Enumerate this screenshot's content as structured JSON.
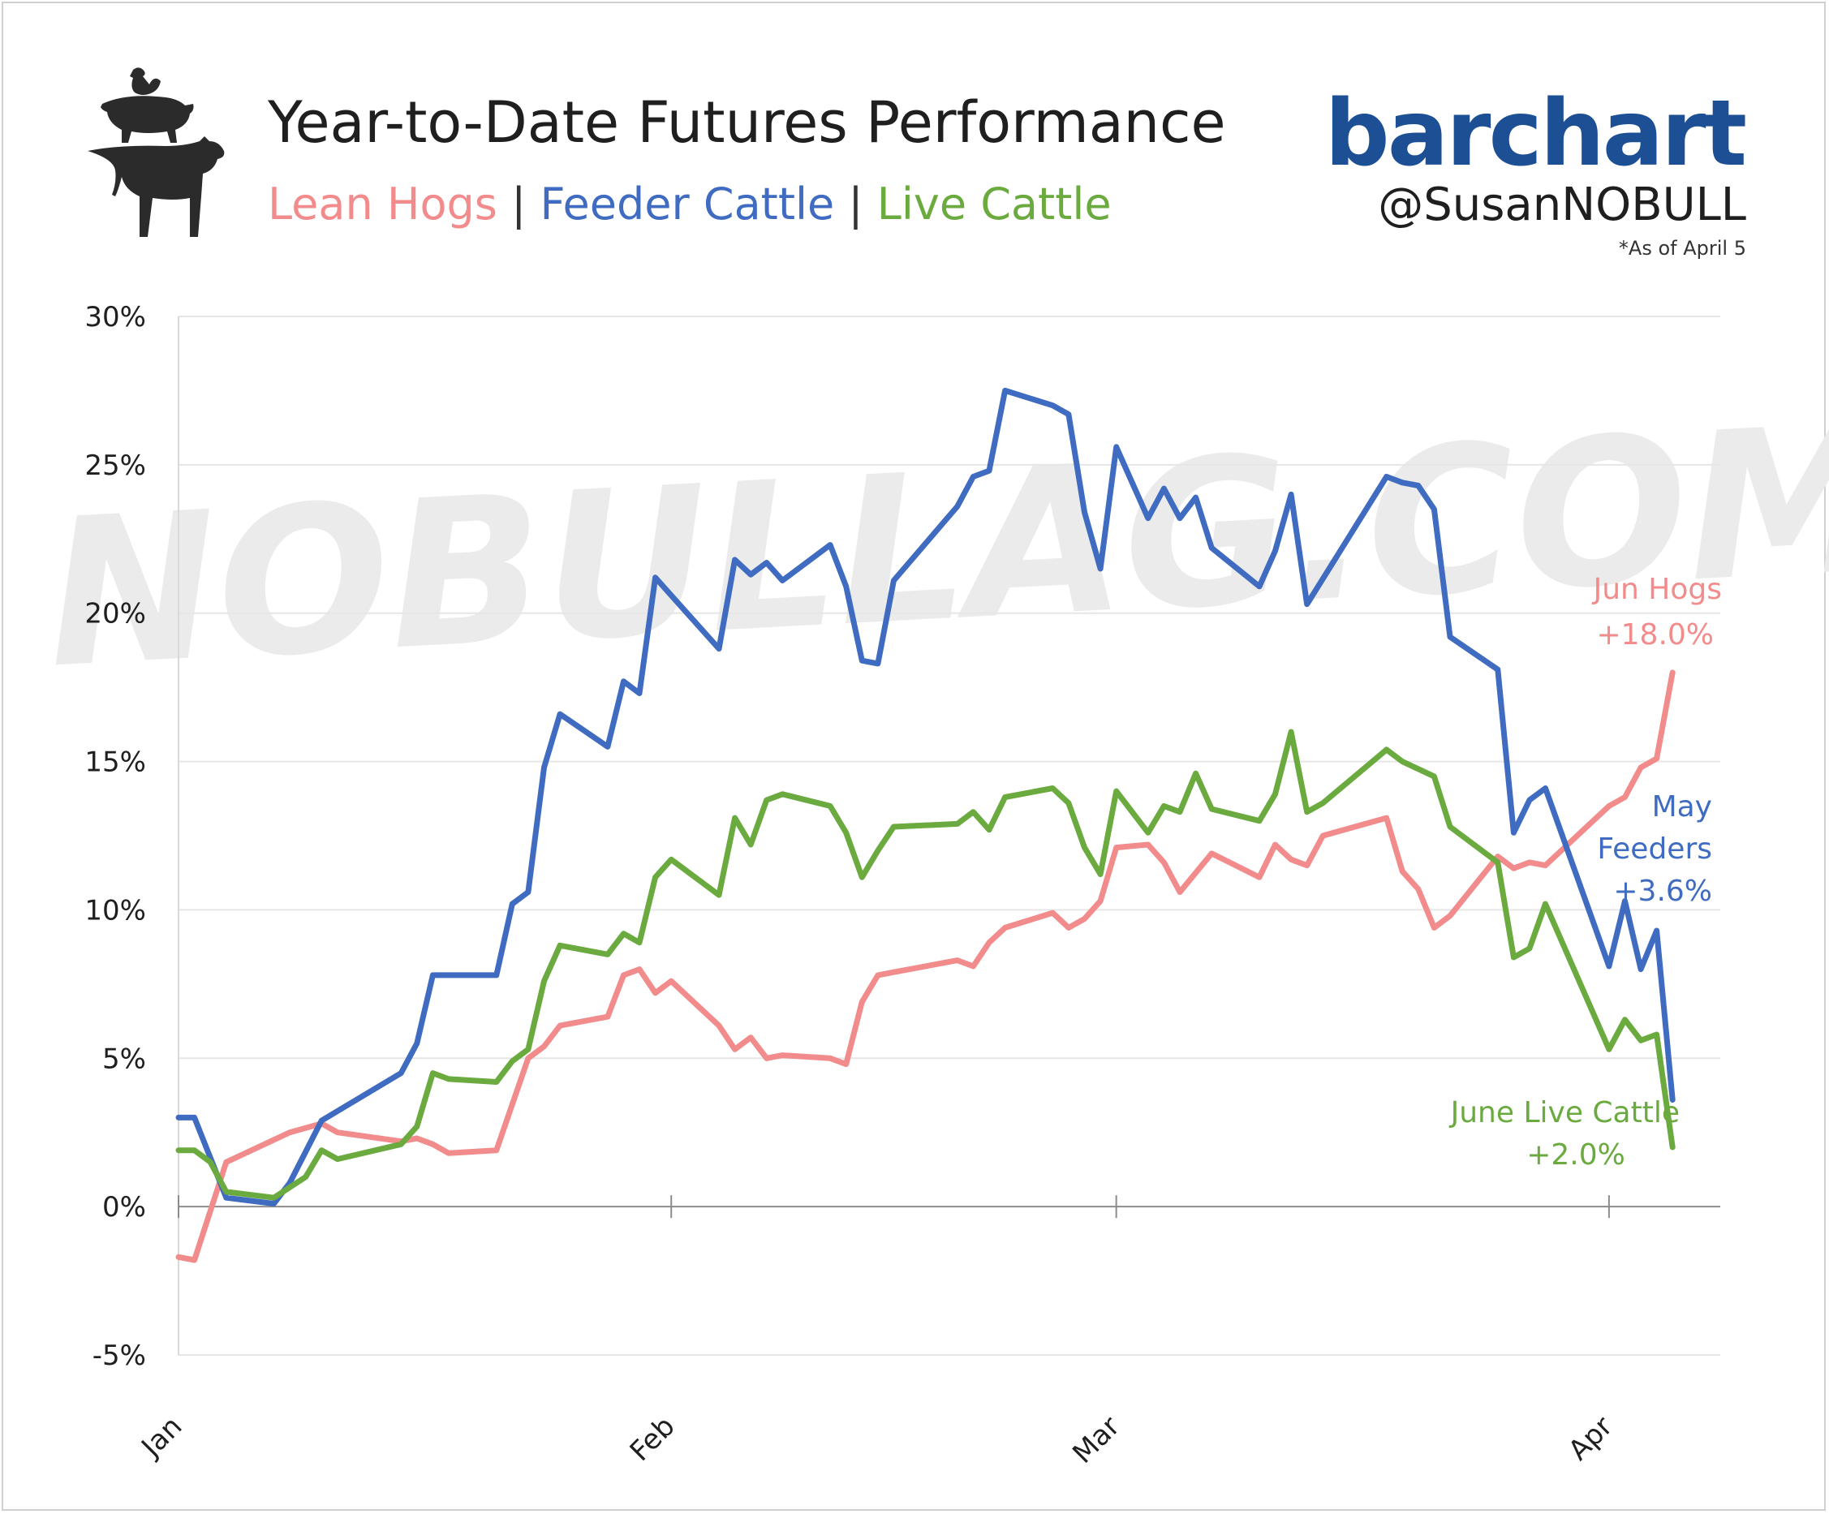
{
  "header": {
    "title": "Year-to-Date Futures Performance",
    "subtitle": {
      "lean_hogs": "Lean Hogs",
      "feeder_cattle": "Feeder Cattle",
      "live_cattle": "Live Cattle",
      "separator": "|"
    },
    "brand": "barchart",
    "handle": "@SusanNOBULL",
    "as_of": "*As of April 5",
    "watermark": "NOBULLAG.COM"
  },
  "colors": {
    "hogs": "#f28b8b",
    "feeders": "#3f6cc0",
    "live_cattle": "#6aaa3f",
    "grid": "#e6e6e6",
    "brand": "#1c4f94"
  },
  "chart_data": {
    "type": "line",
    "x_type": "date",
    "x_range": [
      "2022-01-01",
      "2022-04-08"
    ],
    "x_ticks": [
      "2022-01-01",
      "2022-02-01",
      "2022-03-01",
      "2022-04-01"
    ],
    "x_tick_labels": [
      "Jan",
      "Feb",
      "Mar",
      "Apr"
    ],
    "ylim": [
      -5,
      30
    ],
    "y_ticks": [
      -5,
      0,
      5,
      10,
      15,
      20,
      25,
      30
    ],
    "y_tick_labels": [
      "-5%",
      "0%",
      "5%",
      "10%",
      "15%",
      "20%",
      "25%",
      "30%"
    ],
    "grid": true,
    "series": [
      {
        "name": "Jun Hogs",
        "color": "#f28b8b",
        "end_label": [
          "Jun Hogs",
          "+18.0%"
        ],
        "points": [
          [
            "2022-01-01",
            -1.7
          ],
          [
            "2022-01-02",
            -1.8
          ],
          [
            "2022-01-04",
            1.5
          ],
          [
            "2022-01-08",
            2.5
          ],
          [
            "2022-01-10",
            2.8
          ],
          [
            "2022-01-11",
            2.5
          ],
          [
            "2022-01-15",
            2.2
          ],
          [
            "2022-01-16",
            2.3
          ],
          [
            "2022-01-17",
            2.1
          ],
          [
            "2022-01-18",
            1.8
          ],
          [
            "2022-01-21",
            1.9
          ],
          [
            "2022-01-23",
            5.0
          ],
          [
            "2022-01-24",
            5.4
          ],
          [
            "2022-01-25",
            6.1
          ],
          [
            "2022-01-28",
            6.4
          ],
          [
            "2022-01-29",
            7.8
          ],
          [
            "2022-01-30",
            8.0
          ],
          [
            "2022-01-31",
            7.2
          ],
          [
            "2022-02-01",
            7.6
          ],
          [
            "2022-02-04",
            6.1
          ],
          [
            "2022-02-05",
            5.3
          ],
          [
            "2022-02-06",
            5.7
          ],
          [
            "2022-02-07",
            5.0
          ],
          [
            "2022-02-08",
            5.1
          ],
          [
            "2022-02-11",
            5.0
          ],
          [
            "2022-02-12",
            4.8
          ],
          [
            "2022-02-13",
            6.9
          ],
          [
            "2022-02-14",
            7.8
          ],
          [
            "2022-02-15",
            7.9
          ],
          [
            "2022-02-19",
            8.3
          ],
          [
            "2022-02-20",
            8.1
          ],
          [
            "2022-02-21",
            8.9
          ],
          [
            "2022-02-22",
            9.4
          ],
          [
            "2022-02-25",
            9.9
          ],
          [
            "2022-02-26",
            9.4
          ],
          [
            "2022-02-27",
            9.7
          ],
          [
            "2022-02-28",
            10.3
          ],
          [
            "2022-03-01",
            12.1
          ],
          [
            "2022-03-03",
            12.2
          ],
          [
            "2022-03-04",
            11.6
          ],
          [
            "2022-03-05",
            10.6
          ],
          [
            "2022-03-07",
            11.9
          ],
          [
            "2022-03-10",
            11.1
          ],
          [
            "2022-03-11",
            12.2
          ],
          [
            "2022-03-12",
            11.7
          ],
          [
            "2022-03-13",
            11.5
          ],
          [
            "2022-03-14",
            12.5
          ],
          [
            "2022-03-18",
            13.1
          ],
          [
            "2022-03-19",
            11.3
          ],
          [
            "2022-03-20",
            10.7
          ],
          [
            "2022-03-21",
            9.4
          ],
          [
            "2022-03-22",
            9.8
          ],
          [
            "2022-03-25",
            11.8
          ],
          [
            "2022-03-26",
            11.4
          ],
          [
            "2022-03-27",
            11.6
          ],
          [
            "2022-03-28",
            11.5
          ],
          [
            "2022-04-01",
            13.5
          ],
          [
            "2022-04-02",
            13.8
          ],
          [
            "2022-04-03",
            14.8
          ],
          [
            "2022-04-04",
            15.1
          ],
          [
            "2022-04-05",
            18.0
          ]
        ]
      },
      {
        "name": "May Feeders",
        "color": "#3f6cc0",
        "end_label": [
          "May",
          "Feeders",
          "+3.6%"
        ],
        "points": [
          [
            "2022-01-01",
            3.0
          ],
          [
            "2022-01-02",
            3.0
          ],
          [
            "2022-01-04",
            0.3
          ],
          [
            "2022-01-07",
            0.1
          ],
          [
            "2022-01-08",
            0.8
          ],
          [
            "2022-01-10",
            2.9
          ],
          [
            "2022-01-15",
            4.5
          ],
          [
            "2022-01-16",
            5.5
          ],
          [
            "2022-01-17",
            7.8
          ],
          [
            "2022-01-21",
            7.8
          ],
          [
            "2022-01-22",
            10.2
          ],
          [
            "2022-01-23",
            10.6
          ],
          [
            "2022-01-24",
            14.8
          ],
          [
            "2022-01-25",
            16.6
          ],
          [
            "2022-01-28",
            15.5
          ],
          [
            "2022-01-29",
            17.7
          ],
          [
            "2022-01-30",
            17.3
          ],
          [
            "2022-01-31",
            21.2
          ],
          [
            "2022-02-01",
            20.6
          ],
          [
            "2022-02-04",
            18.8
          ],
          [
            "2022-02-05",
            21.8
          ],
          [
            "2022-02-06",
            21.3
          ],
          [
            "2022-02-07",
            21.7
          ],
          [
            "2022-02-08",
            21.1
          ],
          [
            "2022-02-11",
            22.3
          ],
          [
            "2022-02-12",
            20.9
          ],
          [
            "2022-02-13",
            18.4
          ],
          [
            "2022-02-14",
            18.3
          ],
          [
            "2022-02-15",
            21.1
          ],
          [
            "2022-02-19",
            23.6
          ],
          [
            "2022-02-20",
            24.6
          ],
          [
            "2022-02-21",
            24.8
          ],
          [
            "2022-02-22",
            27.5
          ],
          [
            "2022-02-25",
            27.0
          ],
          [
            "2022-02-26",
            26.7
          ],
          [
            "2022-02-27",
            23.4
          ],
          [
            "2022-02-28",
            21.5
          ],
          [
            "2022-03-01",
            25.6
          ],
          [
            "2022-03-03",
            23.2
          ],
          [
            "2022-03-04",
            24.2
          ],
          [
            "2022-03-05",
            23.2
          ],
          [
            "2022-03-06",
            23.9
          ],
          [
            "2022-03-07",
            22.2
          ],
          [
            "2022-03-10",
            20.9
          ],
          [
            "2022-03-11",
            22.1
          ],
          [
            "2022-03-12",
            24.0
          ],
          [
            "2022-03-13",
            20.3
          ],
          [
            "2022-03-18",
            24.6
          ],
          [
            "2022-03-19",
            24.4
          ],
          [
            "2022-03-20",
            24.3
          ],
          [
            "2022-03-21",
            23.5
          ],
          [
            "2022-03-22",
            19.2
          ],
          [
            "2022-03-25",
            18.1
          ],
          [
            "2022-03-26",
            12.6
          ],
          [
            "2022-03-27",
            13.7
          ],
          [
            "2022-03-28",
            14.1
          ],
          [
            "2022-04-01",
            8.1
          ],
          [
            "2022-04-02",
            10.3
          ],
          [
            "2022-04-03",
            8.0
          ],
          [
            "2022-04-04",
            9.3
          ],
          [
            "2022-04-05",
            3.6
          ]
        ]
      },
      {
        "name": "June Live Cattle",
        "color": "#6aaa3f",
        "end_label": [
          "June Live Cattle",
          "+2.0%"
        ],
        "points": [
          [
            "2022-01-01",
            1.9
          ],
          [
            "2022-01-02",
            1.9
          ],
          [
            "2022-01-03",
            1.5
          ],
          [
            "2022-01-04",
            0.5
          ],
          [
            "2022-01-07",
            0.3
          ],
          [
            "2022-01-09",
            1.0
          ],
          [
            "2022-01-10",
            1.9
          ],
          [
            "2022-01-11",
            1.6
          ],
          [
            "2022-01-15",
            2.1
          ],
          [
            "2022-01-16",
            2.7
          ],
          [
            "2022-01-17",
            4.5
          ],
          [
            "2022-01-18",
            4.3
          ],
          [
            "2022-01-21",
            4.2
          ],
          [
            "2022-01-22",
            4.9
          ],
          [
            "2022-01-23",
            5.3
          ],
          [
            "2022-01-24",
            7.6
          ],
          [
            "2022-01-25",
            8.8
          ],
          [
            "2022-01-28",
            8.5
          ],
          [
            "2022-01-29",
            9.2
          ],
          [
            "2022-01-30",
            8.9
          ],
          [
            "2022-01-31",
            11.1
          ],
          [
            "2022-02-01",
            11.7
          ],
          [
            "2022-02-04",
            10.5
          ],
          [
            "2022-02-05",
            13.1
          ],
          [
            "2022-02-06",
            12.2
          ],
          [
            "2022-02-07",
            13.7
          ],
          [
            "2022-02-08",
            13.9
          ],
          [
            "2022-02-11",
            13.5
          ],
          [
            "2022-02-12",
            12.6
          ],
          [
            "2022-02-13",
            11.1
          ],
          [
            "2022-02-14",
            12.0
          ],
          [
            "2022-02-15",
            12.8
          ],
          [
            "2022-02-19",
            12.9
          ],
          [
            "2022-02-20",
            13.3
          ],
          [
            "2022-02-21",
            12.7
          ],
          [
            "2022-02-22",
            13.8
          ],
          [
            "2022-02-25",
            14.1
          ],
          [
            "2022-02-26",
            13.6
          ],
          [
            "2022-02-27",
            12.1
          ],
          [
            "2022-02-28",
            11.2
          ],
          [
            "2022-03-01",
            14.0
          ],
          [
            "2022-03-03",
            12.6
          ],
          [
            "2022-03-04",
            13.5
          ],
          [
            "2022-03-05",
            13.3
          ],
          [
            "2022-03-06",
            14.6
          ],
          [
            "2022-03-07",
            13.4
          ],
          [
            "2022-03-10",
            13.0
          ],
          [
            "2022-03-11",
            13.9
          ],
          [
            "2022-03-12",
            16.0
          ],
          [
            "2022-03-13",
            13.3
          ],
          [
            "2022-03-14",
            13.6
          ],
          [
            "2022-03-18",
            15.4
          ],
          [
            "2022-03-19",
            15.0
          ],
          [
            "2022-03-21",
            14.5
          ],
          [
            "2022-03-22",
            12.8
          ],
          [
            "2022-03-25",
            11.6
          ],
          [
            "2022-03-26",
            8.4
          ],
          [
            "2022-03-27",
            8.7
          ],
          [
            "2022-03-28",
            10.2
          ],
          [
            "2022-04-01",
            5.3
          ],
          [
            "2022-04-02",
            6.3
          ],
          [
            "2022-04-03",
            5.6
          ],
          [
            "2022-04-04",
            5.8
          ],
          [
            "2022-04-05",
            2.0
          ]
        ]
      }
    ]
  }
}
